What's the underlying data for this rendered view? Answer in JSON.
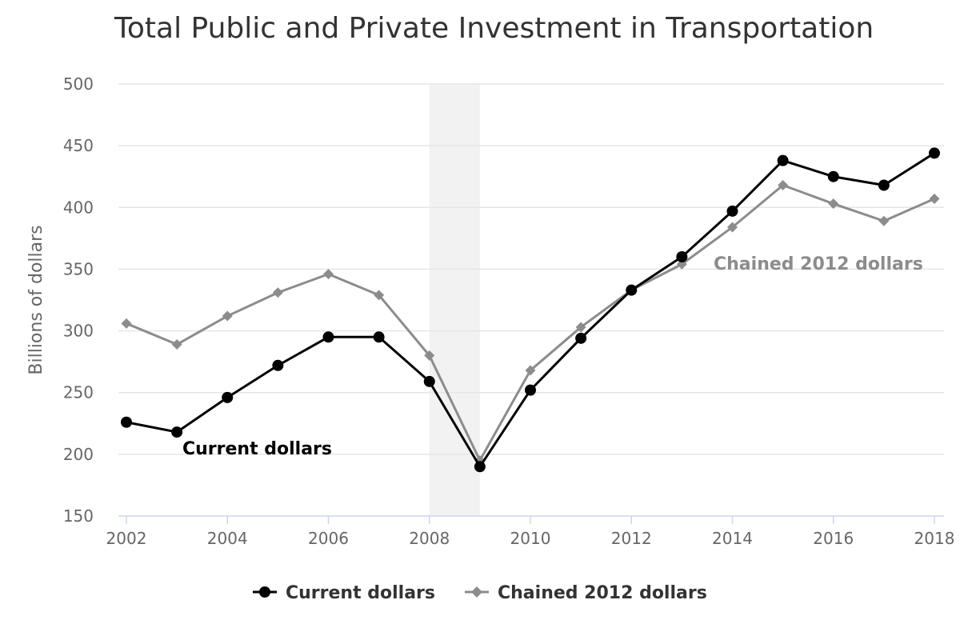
{
  "chart_data": {
    "type": "line",
    "title": "Total Public and Private Investment in Transportation",
    "xlabel": "",
    "ylabel": "Billions of dollars",
    "x": [
      2002,
      2003,
      2004,
      2005,
      2006,
      2007,
      2008,
      2009,
      2010,
      2011,
      2012,
      2013,
      2014,
      2015,
      2016,
      2017,
      2018
    ],
    "x_tick_labels": [
      "2002",
      "2004",
      "2006",
      "2008",
      "2010",
      "2012",
      "2014",
      "2016",
      "2018"
    ],
    "y_tick_labels": [
      "150",
      "200",
      "250",
      "300",
      "350",
      "400",
      "450",
      "500"
    ],
    "xlim": [
      2002,
      2018
    ],
    "ylim": [
      150,
      500
    ],
    "grid": true,
    "recession_band": [
      2008,
      2009
    ],
    "series": [
      {
        "name": "Current dollars",
        "marker": "circle",
        "color": "#000000",
        "values": [
          226,
          218,
          246,
          272,
          295,
          295,
          259,
          190,
          252,
          294,
          333,
          360,
          397,
          438,
          425,
          418,
          444
        ]
      },
      {
        "name": "Chained 2012 dollars",
        "marker": "diamond",
        "color": "#8c8c8c",
        "values": [
          306,
          289,
          312,
          331,
          346,
          329,
          280,
          195,
          268,
          303,
          333,
          354,
          384,
          418,
          403,
          389,
          407
        ]
      }
    ],
    "annotations": [
      {
        "text": "Current dollars",
        "series": "Current dollars"
      },
      {
        "text": "Chained 2012 dollars",
        "series": "Chained 2012 dollars"
      }
    ],
    "legend": {
      "position": "bottom-center",
      "items": [
        "Current dollars",
        "Chained 2012 dollars"
      ]
    },
    "colors": {
      "grid": "#e6e6e6",
      "axis": "#ccd6eb",
      "band": "#f2f2f2"
    }
  }
}
